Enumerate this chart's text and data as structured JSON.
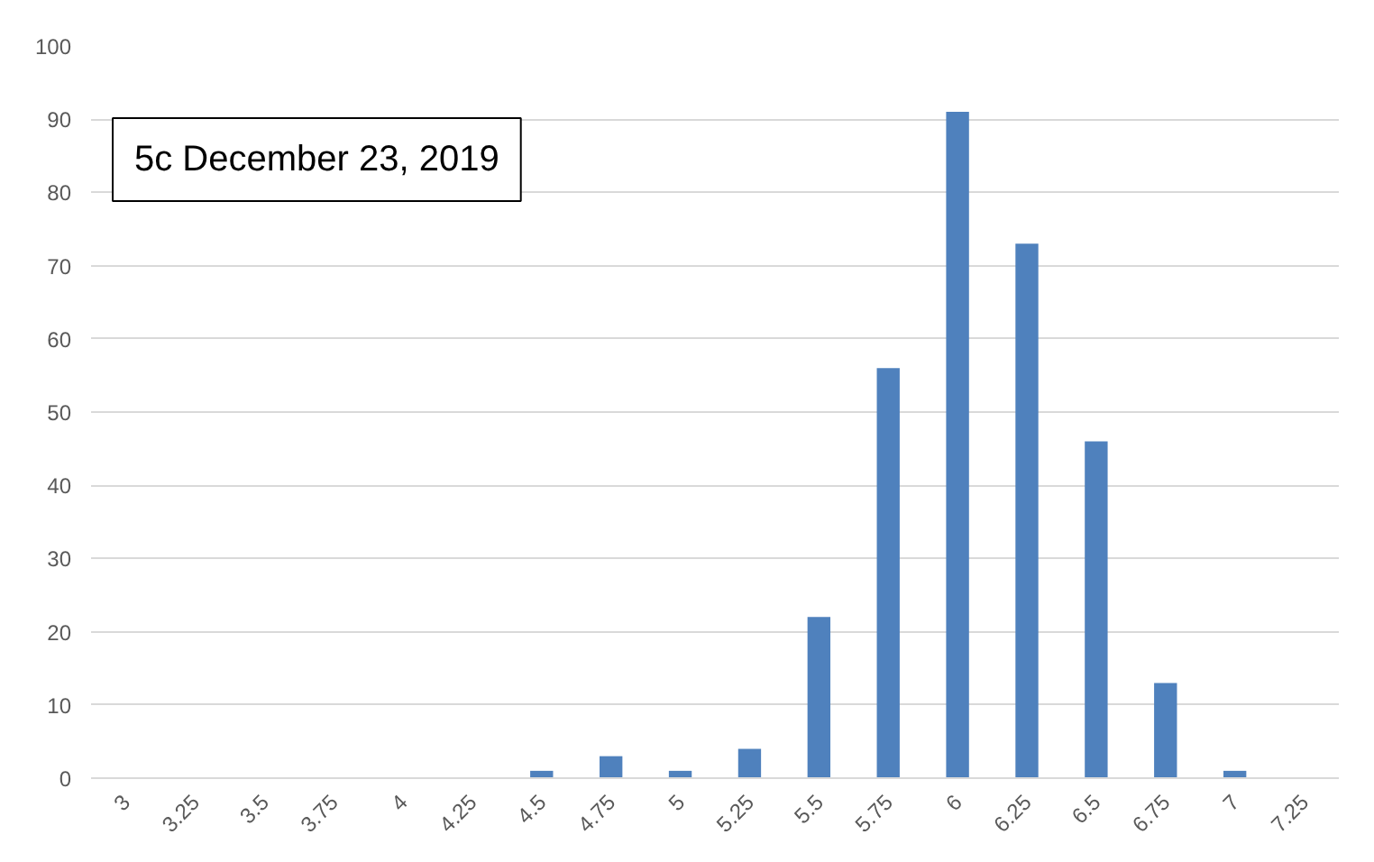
{
  "chart_data": {
    "type": "bar",
    "title": "5c December 23, 2019",
    "categories": [
      "3",
      "3.25",
      "3.5",
      "3.75",
      "4",
      "4.25",
      "4.5",
      "4.75",
      "5",
      "5.25",
      "5.5",
      "5.75",
      "6",
      "6.25",
      "6.5",
      "6.75",
      "7",
      "7.25"
    ],
    "values": [
      0,
      0,
      0,
      0,
      0,
      0,
      1,
      3,
      1,
      4,
      22,
      56,
      91,
      73,
      46,
      13,
      1,
      0
    ],
    "color": "#4f81bd",
    "ylim": [
      0,
      100
    ],
    "yticks": [
      0,
      10,
      20,
      30,
      40,
      50,
      60,
      70,
      80,
      90,
      100
    ],
    "grid": "y"
  }
}
